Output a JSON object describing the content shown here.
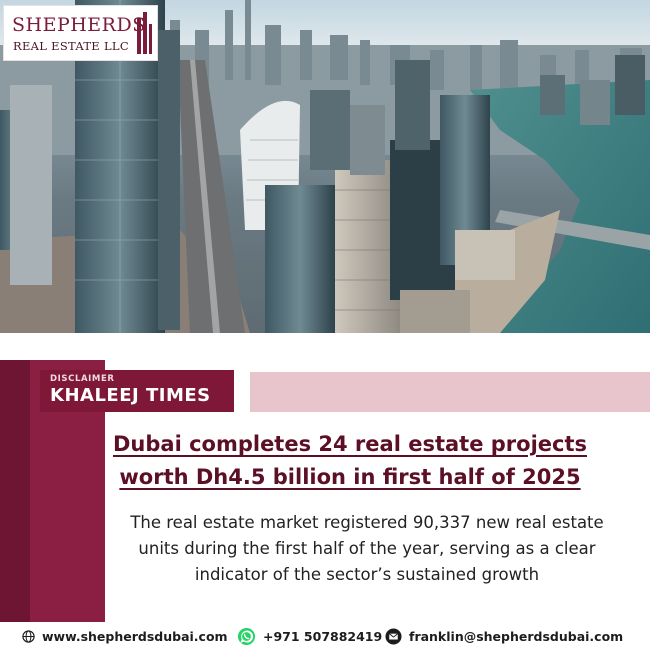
{
  "brand": {
    "name": "SHEPHERDS",
    "subtitle": "REAL ESTATE LLC",
    "primary_color": "#7a1d3a"
  },
  "source": {
    "label": "DISCLAIMER",
    "name": "KHALEEJ TIMES"
  },
  "headline": {
    "line1": "Dubai completes 24 real estate projects",
    "line2": "worth Dh4.5 billion in first half of 2025"
  },
  "summary": "The real estate market registered 90,337 new real estate units during the first half of the year, serving as a clear indicator of the sector’s sustained growth",
  "footer": {
    "website": "www.shepherdsdubai.com",
    "phone": "+971 507882419",
    "email": "franklin@shepherdsdubai.com",
    "icons": [
      "globe-icon",
      "whatsapp-icon",
      "email-icon"
    ]
  },
  "colors": {
    "accent_dark": "#7f1838",
    "accent_band": "#8b1e43",
    "accent_light": "#e8c5cc",
    "whatsapp": "#25d366"
  }
}
